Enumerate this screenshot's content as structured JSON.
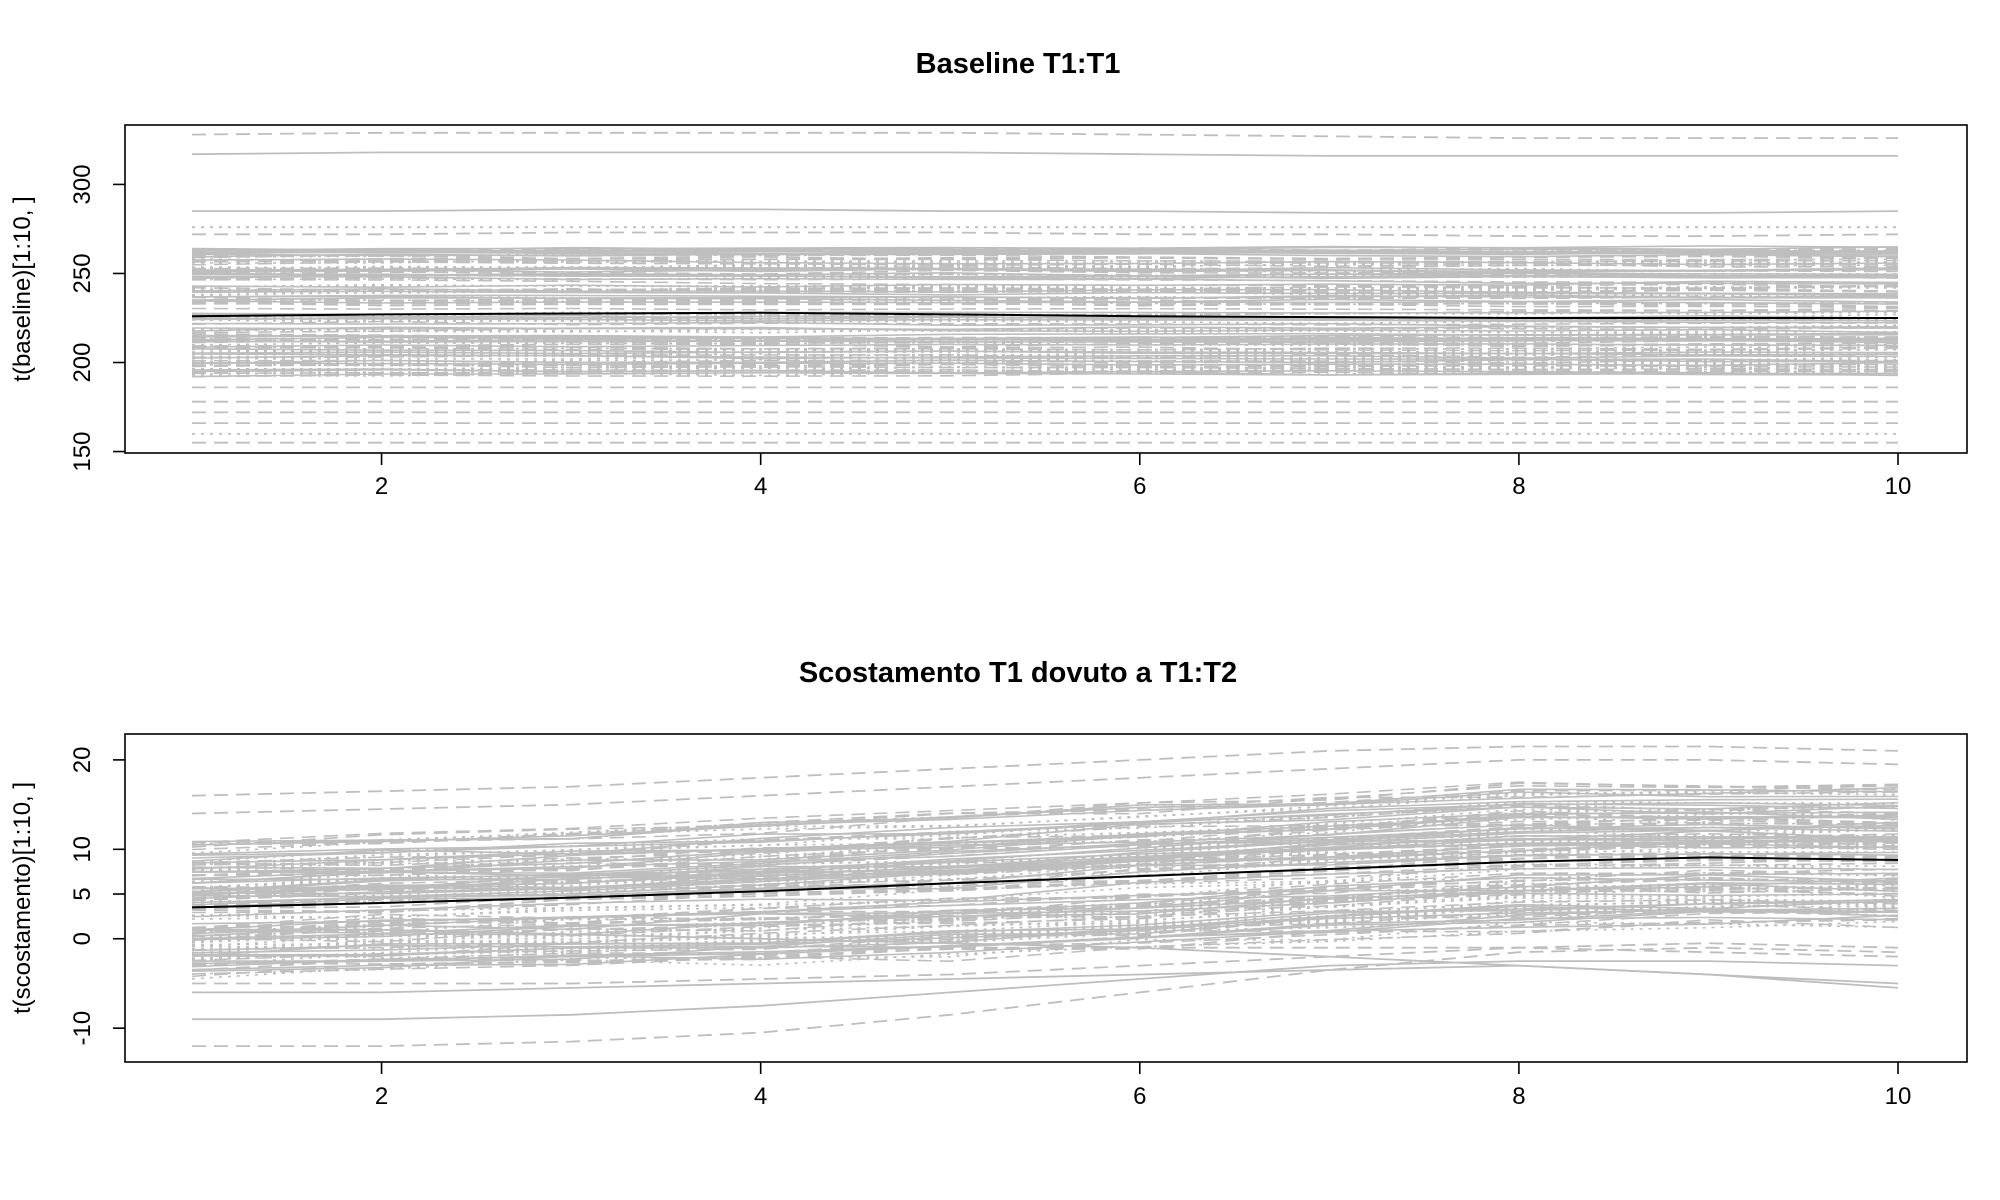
{
  "chart_data": [
    {
      "type": "line",
      "title": "Baseline T1:T1",
      "xlabel": "",
      "ylabel": "t(baseline)[1:10, ]",
      "x": [
        1,
        2,
        3,
        4,
        5,
        6,
        7,
        8,
        9,
        10
      ],
      "xlim": [
        1,
        10
      ],
      "ylim": [
        152,
        330
      ],
      "x_ticks": [
        2,
        4,
        6,
        8,
        10
      ],
      "y_ticks": [
        150,
        200,
        250,
        300
      ],
      "grid": false,
      "legend": "none",
      "colors": {
        "series": "#bebebe",
        "mean": "#000000"
      },
      "series_count_approx": 1000,
      "series_style": "matplot-style mixed solid/dashed/dotted grey lines",
      "band_range": [
        190,
        265
      ],
      "highlighted_series": [
        {
          "values": [
            328,
            329,
            329,
            329,
            329,
            328,
            327,
            326,
            326,
            326
          ],
          "style": "dashed"
        },
        {
          "values": [
            317,
            318,
            318,
            318,
            318,
            317,
            316,
            316,
            316,
            316
          ],
          "style": "solid"
        },
        {
          "values": [
            285,
            285,
            286,
            286,
            285,
            285,
            284,
            284,
            284,
            285
          ],
          "style": "solid"
        },
        {
          "values": [
            276,
            276,
            276,
            276,
            276,
            276,
            276,
            276,
            276,
            276
          ],
          "style": "dotted"
        },
        {
          "values": [
            272,
            272,
            273,
            273,
            273,
            272,
            272,
            271,
            271,
            272
          ],
          "style": "dashed"
        },
        {
          "values": [
            186,
            186,
            186,
            186,
            186,
            186,
            186,
            186,
            186,
            186
          ],
          "style": "dashed"
        },
        {
          "values": [
            178,
            178,
            178,
            178,
            178,
            178,
            178,
            178,
            178,
            178
          ],
          "style": "dashed"
        },
        {
          "values": [
            172,
            172,
            172,
            172,
            172,
            172,
            172,
            172,
            172,
            172
          ],
          "style": "dashed"
        },
        {
          "values": [
            166,
            166,
            166,
            166,
            166,
            166,
            166,
            166,
            166,
            166
          ],
          "style": "dashed"
        },
        {
          "values": [
            160,
            160,
            160,
            160,
            160,
            160,
            160,
            160,
            160,
            160
          ],
          "style": "dotted"
        },
        {
          "values": [
            155,
            155,
            155,
            155,
            155,
            155,
            155,
            155,
            155,
            155
          ],
          "style": "dashed"
        }
      ],
      "mean_line": [
        226,
        227,
        227.5,
        228,
        227,
        226,
        225.5,
        225,
        225,
        225
      ]
    },
    {
      "type": "line",
      "title": "Scostamento T1 dovuto a T1:T2",
      "xlabel": "",
      "ylabel": "t(scostamento)[1:10, ]",
      "x": [
        1,
        2,
        3,
        4,
        5,
        6,
        7,
        8,
        9,
        10
      ],
      "xlim": [
        1,
        10
      ],
      "ylim": [
        -13,
        22
      ],
      "x_ticks": [
        2,
        4,
        6,
        8,
        10
      ],
      "y_ticks": [
        -10,
        0,
        5,
        10,
        20
      ],
      "grid": false,
      "legend": "none",
      "colors": {
        "series": "#bebebe",
        "mean": "#000000"
      },
      "series_count_approx": 1000,
      "series_style": "matplot-style mixed solid/dashed/dotted grey lines",
      "band_lower": [
        -4,
        -3.5,
        -3,
        -2.5,
        -2,
        -1,
        0,
        1,
        1.5,
        1.5
      ],
      "band_upper": [
        11,
        11.5,
        12,
        13,
        14,
        15,
        16,
        17,
        17,
        17
      ],
      "highlighted_series": [
        {
          "values": [
            16,
            16.5,
            17,
            18,
            19,
            20,
            21,
            21.5,
            21.5,
            21
          ],
          "style": "dashed"
        },
        {
          "values": [
            14,
            14.5,
            15,
            16,
            17,
            18,
            19,
            20,
            20,
            19.5
          ],
          "style": "dashed"
        },
        {
          "values": [
            -9,
            -9,
            -8.5,
            -7.5,
            -6,
            -4.5,
            -3,
            -2.5,
            -2.5,
            -3
          ],
          "style": "solid"
        },
        {
          "values": [
            -12,
            -12,
            -11.5,
            -10.5,
            -8.5,
            -6,
            -3.5,
            -1.5,
            -1,
            -1.5
          ],
          "style": "dashed"
        },
        {
          "values": [
            -6,
            -6,
            -5.5,
            -5,
            -4.5,
            -4,
            -3.5,
            -3,
            -4,
            -5
          ],
          "style": "solid"
        },
        {
          "values": [
            -5,
            -5,
            -5,
            -4.5,
            -4,
            -3,
            -2,
            -1,
            -0.5,
            -1
          ],
          "style": "dashed"
        },
        {
          "values": [
            1,
            1,
            0.5,
            0,
            -0.5,
            -1,
            -2,
            -3,
            -4,
            -5.5
          ],
          "style": "solid"
        },
        {
          "values": [
            -3,
            -2.5,
            -2,
            -1.5,
            -1,
            -1,
            -1,
            -1,
            -1.5,
            -2
          ],
          "style": "dashed"
        }
      ],
      "mean_line": [
        3.5,
        4,
        4.6,
        5.3,
        6.2,
        7,
        7.8,
        8.6,
        9.1,
        8.8
      ]
    }
  ]
}
